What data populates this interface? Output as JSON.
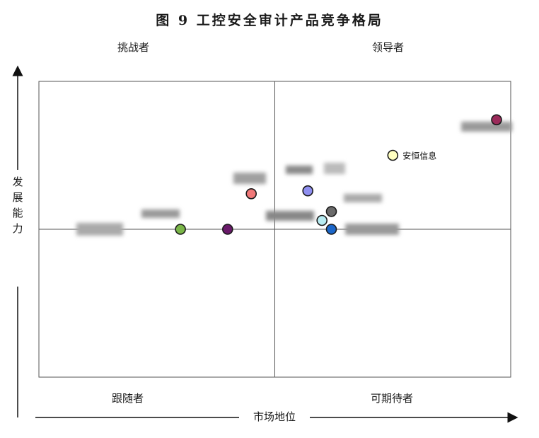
{
  "title": "图 9   工控安全审计产品竞争格局",
  "quadrants": {
    "top_left": "挑战者",
    "top_right": "领导者",
    "bottom_left": "跟随者",
    "bottom_right": "可期待者"
  },
  "axes": {
    "y_label": [
      "发",
      "展",
      "能",
      "力"
    ],
    "x_label": "市场地位"
  },
  "chart_data": {
    "type": "scatter",
    "title": "图 9   工控安全审计产品竞争格局",
    "xlabel": "市场地位",
    "ylabel": "发展能力",
    "xlim": [
      0,
      1
    ],
    "ylim": [
      0,
      1
    ],
    "grid": false,
    "points": [
      {
        "label": "",
        "x": 0.97,
        "y": 0.87,
        "color": "#9b2a5a"
      },
      {
        "label": "安恒信息",
        "x": 0.75,
        "y": 0.75,
        "color": "#ffffc0"
      },
      {
        "label": "",
        "x": 0.57,
        "y": 0.63,
        "color": "#8f8ff0"
      },
      {
        "label": "",
        "x": 0.45,
        "y": 0.62,
        "color": "#f07878"
      },
      {
        "label": "",
        "x": 0.62,
        "y": 0.56,
        "color": "#6b6b6b"
      },
      {
        "label": "",
        "x": 0.6,
        "y": 0.53,
        "color": "#b8ecf2"
      },
      {
        "label": "",
        "x": 0.62,
        "y": 0.5,
        "color": "#1b66c9"
      },
      {
        "label": "",
        "x": 0.4,
        "y": 0.5,
        "color": "#6a1a6a"
      },
      {
        "label": "",
        "x": 0.3,
        "y": 0.5,
        "color": "#7ab648"
      }
    ]
  }
}
